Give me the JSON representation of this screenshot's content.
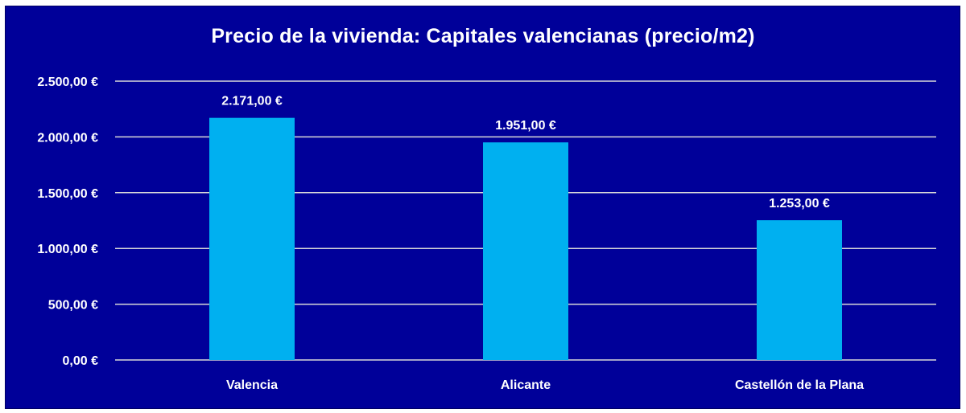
{
  "chart_data": {
    "type": "bar",
    "title": "Precio de la vivienda: Capitales valencianas (precio/m2)",
    "categories": [
      "Valencia",
      "Alicante",
      "Castellón de la Plana"
    ],
    "values": [
      2171,
      1951,
      1253
    ],
    "data_labels": [
      "2.171,00 €",
      "1.951,00 €",
      "1.253,00 €"
    ],
    "y_ticks": [
      0,
      500,
      1000,
      1500,
      2000,
      2500
    ],
    "y_tick_labels": [
      "0,00 €",
      "500,00 €",
      "1.000,00 €",
      "1.500,00 €",
      "2.000,00 €",
      "2.500,00 €"
    ],
    "ylim": [
      0,
      2500
    ],
    "grid": true,
    "legend": "none",
    "colors": {
      "background": "#000099",
      "bar": "#00b0f0",
      "gridline": "#d9d9d9",
      "text": "#ffffff"
    }
  }
}
